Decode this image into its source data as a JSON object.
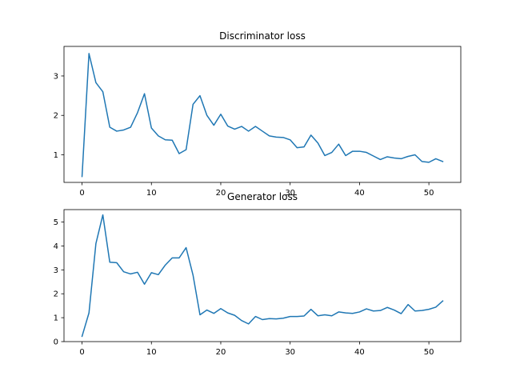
{
  "colors": {
    "line": "#1f77b4",
    "background": "#ffffff",
    "axes": "#000000"
  },
  "chart_data": [
    {
      "type": "line",
      "title": "Discriminator loss",
      "xlabel": "",
      "ylabel": "",
      "xlim": [
        -2.6,
        54.6
      ],
      "ylim": [
        0.3,
        3.75
      ],
      "xticks": [
        0,
        10,
        20,
        30,
        40,
        50
      ],
      "yticks": [
        1,
        2,
        3
      ],
      "grid": false,
      "x": [
        0,
        1,
        2,
        3,
        4,
        5,
        6,
        7,
        8,
        9,
        10,
        11,
        12,
        13,
        14,
        15,
        16,
        17,
        18,
        19,
        20,
        21,
        22,
        23,
        24,
        25,
        26,
        27,
        28,
        29,
        30,
        31,
        32,
        33,
        34,
        35,
        36,
        37,
        38,
        39,
        40,
        41,
        42,
        43,
        44,
        45,
        46,
        47,
        48,
        49,
        50,
        51,
        52
      ],
      "y": [
        0.45,
        3.57,
        2.83,
        2.6,
        1.7,
        1.6,
        1.63,
        1.7,
        2.07,
        2.55,
        1.68,
        1.48,
        1.38,
        1.37,
        1.03,
        1.13,
        2.28,
        2.5,
        2.0,
        1.75,
        2.03,
        1.73,
        1.65,
        1.72,
        1.6,
        1.72,
        1.6,
        1.48,
        1.45,
        1.44,
        1.38,
        1.18,
        1.2,
        1.5,
        1.3,
        0.98,
        1.06,
        1.27,
        0.98,
        1.09,
        1.09,
        1.06,
        0.97,
        0.88,
        0.95,
        0.92,
        0.9,
        0.96,
        1.0,
        0.83,
        0.81,
        0.9,
        0.83
      ]
    },
    {
      "type": "line",
      "title": "Generator loss",
      "xlabel": "",
      "ylabel": "",
      "xlim": [
        -2.6,
        54.6
      ],
      "ylim": [
        0.0,
        5.52
      ],
      "xticks": [
        0,
        10,
        20,
        30,
        40,
        50
      ],
      "yticks": [
        0,
        1,
        2,
        3,
        4,
        5
      ],
      "grid": false,
      "x": [
        0,
        1,
        2,
        3,
        4,
        5,
        6,
        7,
        8,
        9,
        10,
        11,
        12,
        13,
        14,
        15,
        16,
        17,
        18,
        19,
        20,
        21,
        22,
        23,
        24,
        25,
        26,
        27,
        28,
        29,
        30,
        31,
        32,
        33,
        34,
        35,
        36,
        37,
        38,
        39,
        40,
        41,
        42,
        43,
        44,
        45,
        46,
        47,
        48,
        49,
        50,
        51,
        52
      ],
      "y": [
        0.22,
        1.2,
        4.1,
        5.3,
        3.32,
        3.3,
        2.92,
        2.83,
        2.9,
        2.4,
        2.88,
        2.8,
        3.2,
        3.5,
        3.5,
        3.93,
        2.78,
        1.12,
        1.32,
        1.18,
        1.38,
        1.2,
        1.1,
        0.88,
        0.74,
        1.05,
        0.92,
        0.96,
        0.95,
        0.98,
        1.05,
        1.05,
        1.07,
        1.35,
        1.08,
        1.12,
        1.08,
        1.24,
        1.2,
        1.18,
        1.24,
        1.37,
        1.28,
        1.3,
        1.43,
        1.32,
        1.17,
        1.55,
        1.28,
        1.3,
        1.35,
        1.44,
        1.7
      ]
    }
  ]
}
